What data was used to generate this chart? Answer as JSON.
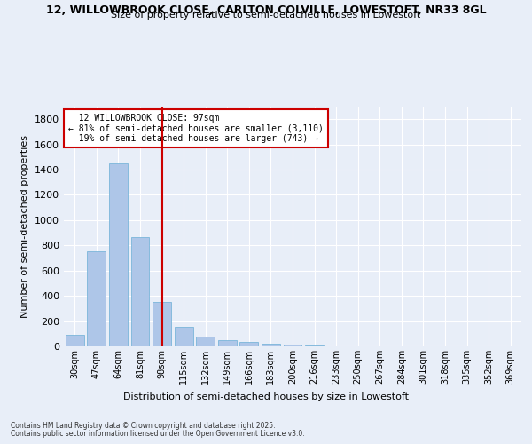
{
  "title_line1": "12, WILLOWBROOK CLOSE, CARLTON COLVILLE, LOWESTOFT, NR33 8GL",
  "title_line2": "Size of property relative to semi-detached houses in Lowestoft",
  "xlabel": "Distribution of semi-detached houses by size in Lowestoft",
  "ylabel": "Number of semi-detached properties",
  "categories": [
    "30sqm",
    "47sqm",
    "64sqm",
    "81sqm",
    "98sqm",
    "115sqm",
    "132sqm",
    "149sqm",
    "166sqm",
    "183sqm",
    "200sqm",
    "216sqm",
    "233sqm",
    "250sqm",
    "267sqm",
    "284sqm",
    "301sqm",
    "318sqm",
    "335sqm",
    "352sqm",
    "369sqm"
  ],
  "values": [
    95,
    755,
    1450,
    865,
    355,
    155,
    80,
    52,
    35,
    22,
    15,
    8,
    3,
    2,
    1,
    1,
    0,
    0,
    0,
    0,
    0
  ],
  "bar_color": "#aec6e8",
  "bar_edge_color": "#6aaed6",
  "property_label": "12 WILLOWBROOK CLOSE: 97sqm",
  "pct_smaller": 81,
  "pct_smaller_count": 3110,
  "pct_larger": 19,
  "pct_larger_count": 743,
  "vline_color": "#cc0000",
  "vline_bin_index": 4,
  "ylim": [
    0,
    1900
  ],
  "yticks": [
    0,
    200,
    400,
    600,
    800,
    1000,
    1200,
    1400,
    1600,
    1800
  ],
  "background_color": "#e8eef8",
  "grid_color": "#ffffff",
  "footnote1": "Contains HM Land Registry data © Crown copyright and database right 2025.",
  "footnote2": "Contains public sector information licensed under the Open Government Licence v3.0."
}
